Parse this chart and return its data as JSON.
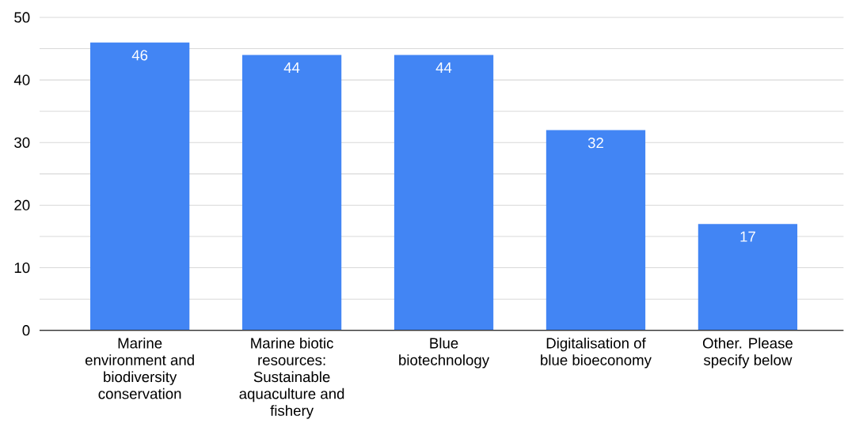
{
  "chart_data": {
    "type": "bar",
    "categories": [
      "Marine environment and biodiversity conservation",
      "Marine biotic resources: Sustainable aquaculture and fishery",
      "Blue biotechnology",
      "Digitalisation of blue bioeconomy",
      "Other. Please specify below"
    ],
    "values": [
      46,
      44,
      44,
      32,
      17
    ],
    "color": "#4285f4",
    "data_labels": true,
    "ylim": [
      0,
      50
    ],
    "yticks": [
      0,
      {
        "value": 5,
        "label": null
      },
      10,
      {
        "value": 15,
        "label": null
      },
      20,
      {
        "value": 25,
        "label": null
      },
      30,
      {
        "value": 35,
        "label": null
      },
      40,
      {
        "value": 45,
        "label": null
      },
      50
    ],
    "grid": "y"
  }
}
